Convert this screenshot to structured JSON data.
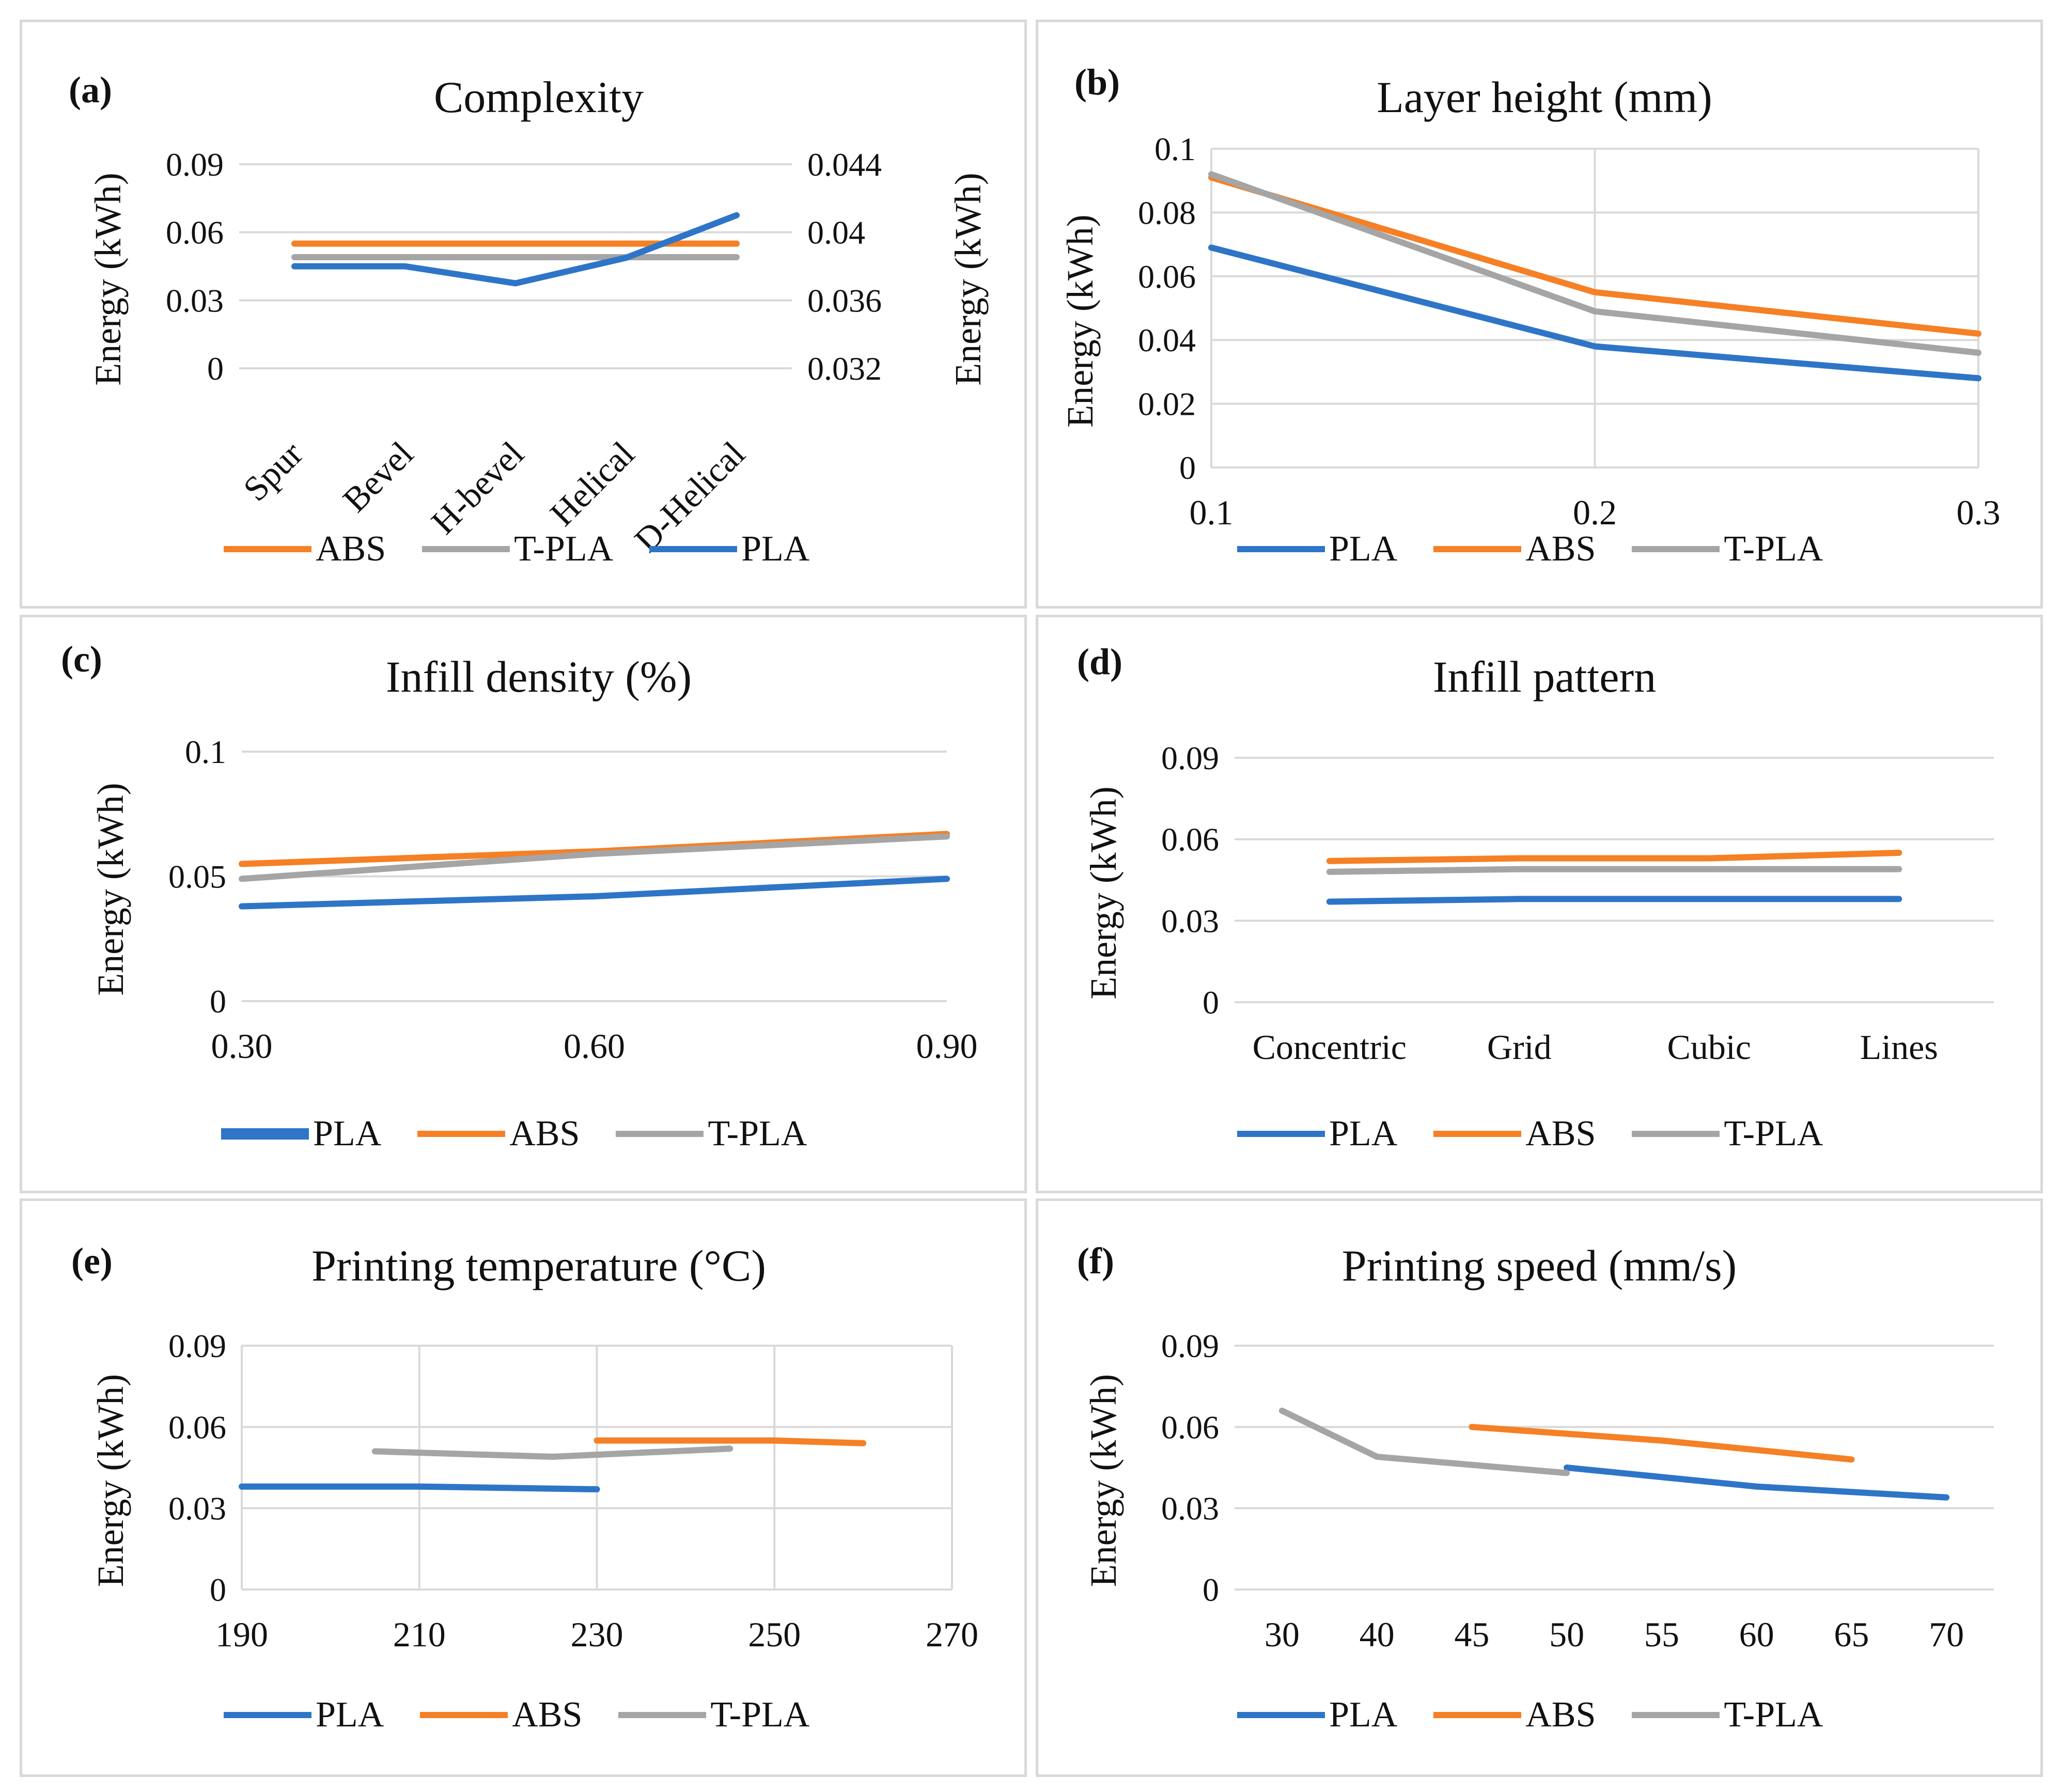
{
  "colors": {
    "PLA": "#2e75c7",
    "ABS": "#f58025",
    "T-PLA": "#a5a5a5",
    "grid": "#d9d9d9"
  },
  "chart_data": [
    {
      "id": "a",
      "letter": "(a)",
      "type": "line",
      "title": "Complexity",
      "ylabel": "Energy (kWh)",
      "ylabel2": "Energy (kWh)",
      "categories": [
        "Spur",
        "Bevel",
        "H-bevel",
        "Helical",
        "D-Helical"
      ],
      "ylim": [
        0,
        0.09
      ],
      "yticks": [
        "0",
        "0.03",
        "0.06",
        "0.09"
      ],
      "y2lim": [
        0.032,
        0.044
      ],
      "y2ticks": [
        "0.032",
        "0.036",
        "0.04",
        "0.044"
      ],
      "legend": [
        "ABS",
        "T-PLA",
        "PLA"
      ],
      "series": [
        {
          "name": "ABS",
          "axis": "left",
          "values": [
            0.055,
            0.055,
            0.055,
            0.055,
            0.055
          ]
        },
        {
          "name": "T-PLA",
          "axis": "left",
          "values": [
            0.049,
            0.049,
            0.049,
            0.049,
            0.049
          ]
        },
        {
          "name": "PLA",
          "axis": "right",
          "values": [
            0.038,
            0.038,
            0.037,
            0.0385,
            0.041
          ]
        }
      ]
    },
    {
      "id": "b",
      "letter": "(b)",
      "type": "line",
      "title": "Layer height (mm)",
      "ylabel": "Energy (kWh)",
      "x": [
        0.1,
        0.2,
        0.3
      ],
      "xticks": [
        "0.1",
        "0.2",
        "0.3"
      ],
      "ylim": [
        0,
        0.1
      ],
      "yticks": [
        "0",
        "0.02",
        "0.04",
        "0.06",
        "0.08",
        "0.1"
      ],
      "legend": [
        "PLA",
        "ABS",
        "T-PLA"
      ],
      "series": [
        {
          "name": "PLA",
          "values": [
            0.069,
            0.038,
            0.028
          ]
        },
        {
          "name": "ABS",
          "values": [
            0.091,
            0.055,
            0.042
          ]
        },
        {
          "name": "T-PLA",
          "values": [
            0.092,
            0.049,
            0.036
          ]
        }
      ]
    },
    {
      "id": "c",
      "letter": "(c)",
      "type": "line",
      "title": "Infill density (%)",
      "ylabel": "Energy (kWh)",
      "x": [
        0.3,
        0.6,
        0.9
      ],
      "xticks": [
        "0.30",
        "0.60",
        "0.90"
      ],
      "ylim": [
        0,
        0.1
      ],
      "yticks": [
        "0",
        "0.05",
        "0.1"
      ],
      "legend": [
        "PLA",
        "ABS",
        "T-PLA"
      ],
      "series": [
        {
          "name": "PLA",
          "values": [
            0.038,
            0.042,
            0.049
          ]
        },
        {
          "name": "ABS",
          "values": [
            0.055,
            0.06,
            0.067
          ]
        },
        {
          "name": "T-PLA",
          "values": [
            0.049,
            0.059,
            0.066
          ]
        }
      ]
    },
    {
      "id": "d",
      "letter": "(d)",
      "type": "line",
      "title": "Infill pattern",
      "ylabel": "Energy (kWh)",
      "categories": [
        "Concentric",
        "Grid",
        "Cubic",
        "Lines"
      ],
      "ylim": [
        0,
        0.09
      ],
      "yticks": [
        "0",
        "0.03",
        "0.06",
        "0.09"
      ],
      "legend": [
        "PLA",
        "ABS",
        "T-PLA"
      ],
      "series": [
        {
          "name": "PLA",
          "values": [
            0.037,
            0.038,
            0.038,
            0.038
          ]
        },
        {
          "name": "ABS",
          "values": [
            0.052,
            0.053,
            0.053,
            0.055
          ]
        },
        {
          "name": "T-PLA",
          "values": [
            0.048,
            0.049,
            0.049,
            0.049
          ]
        }
      ]
    },
    {
      "id": "e",
      "letter": "(e)",
      "type": "line",
      "title": "Printing temperature (°C)",
      "ylabel": "Energy (kWh)",
      "xlim": [
        190,
        270
      ],
      "xticks": [
        "190",
        "210",
        "230",
        "250",
        "270"
      ],
      "ylim": [
        0,
        0.09
      ],
      "yticks": [
        "0",
        "0.03",
        "0.06",
        "0.09"
      ],
      "legend": [
        "PLA",
        "ABS",
        "T-PLA"
      ],
      "series": [
        {
          "name": "PLA",
          "x": [
            190,
            210,
            230
          ],
          "values": [
            0.038,
            0.038,
            0.037
          ]
        },
        {
          "name": "ABS",
          "x": [
            230,
            250,
            260
          ],
          "values": [
            0.055,
            0.055,
            0.054
          ]
        },
        {
          "name": "T-PLA",
          "x": [
            205,
            225,
            245
          ],
          "values": [
            0.051,
            0.049,
            0.052
          ]
        }
      ]
    },
    {
      "id": "f",
      "letter": "(f)",
      "type": "line",
      "title": "Printing speed (mm/s)",
      "ylabel": "Energy (kWh)",
      "categories": [
        "30",
        "40",
        "45",
        "50",
        "55",
        "60",
        "65",
        "70"
      ],
      "ylim": [
        0,
        0.09
      ],
      "yticks": [
        "0",
        "0.03",
        "0.06",
        "0.09"
      ],
      "legend": [
        "PLA",
        "ABS",
        "T-PLA"
      ],
      "series": [
        {
          "name": "PLA",
          "x": [
            "50",
            "60",
            "70"
          ],
          "values": [
            0.045,
            0.038,
            0.034
          ]
        },
        {
          "name": "ABS",
          "x": [
            "45",
            "55",
            "65"
          ],
          "values": [
            0.06,
            0.055,
            0.048
          ]
        },
        {
          "name": "T-PLA",
          "x": [
            "30",
            "40",
            "50"
          ],
          "values": [
            0.066,
            0.049,
            0.043
          ]
        }
      ]
    }
  ]
}
